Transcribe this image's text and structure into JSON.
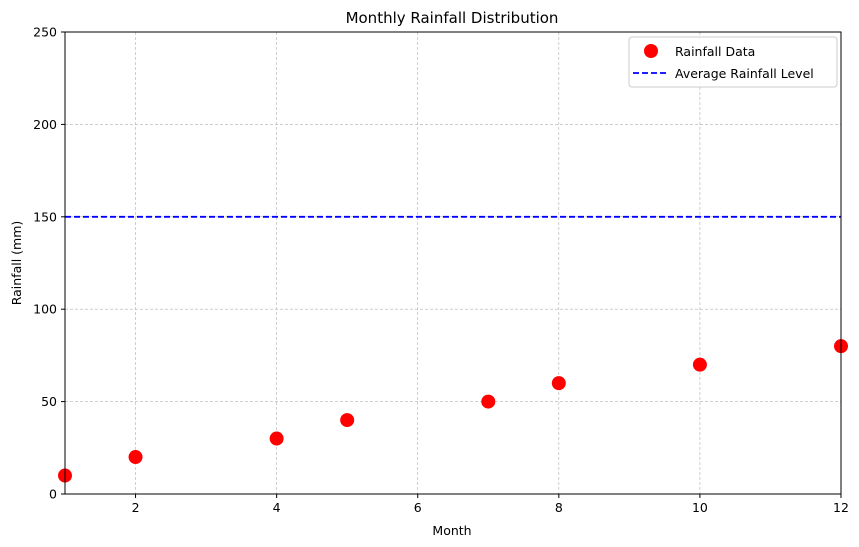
{
  "chart_data": {
    "type": "scatter",
    "title": "Monthly Rainfall Distribution",
    "xlabel": "Month",
    "ylabel": "Rainfall (mm)",
    "xlim": [
      1,
      12
    ],
    "ylim": [
      0,
      250
    ],
    "xticks": [
      2,
      4,
      6,
      8,
      10,
      12
    ],
    "yticks": [
      0,
      50,
      100,
      150,
      200,
      250
    ],
    "grid": true,
    "legend_position": "top-right",
    "series": [
      {
        "name": "Rainfall Data",
        "kind": "scatter",
        "color": "#ff0000",
        "x": [
          1,
          2,
          4,
          5,
          7,
          8,
          10,
          12
        ],
        "y": [
          10,
          20,
          30,
          40,
          50,
          60,
          70,
          80
        ]
      },
      {
        "name": "Average Rainfall Level",
        "kind": "hline",
        "color": "#0000ff",
        "linestyle": "dashed",
        "y": 150
      }
    ]
  }
}
